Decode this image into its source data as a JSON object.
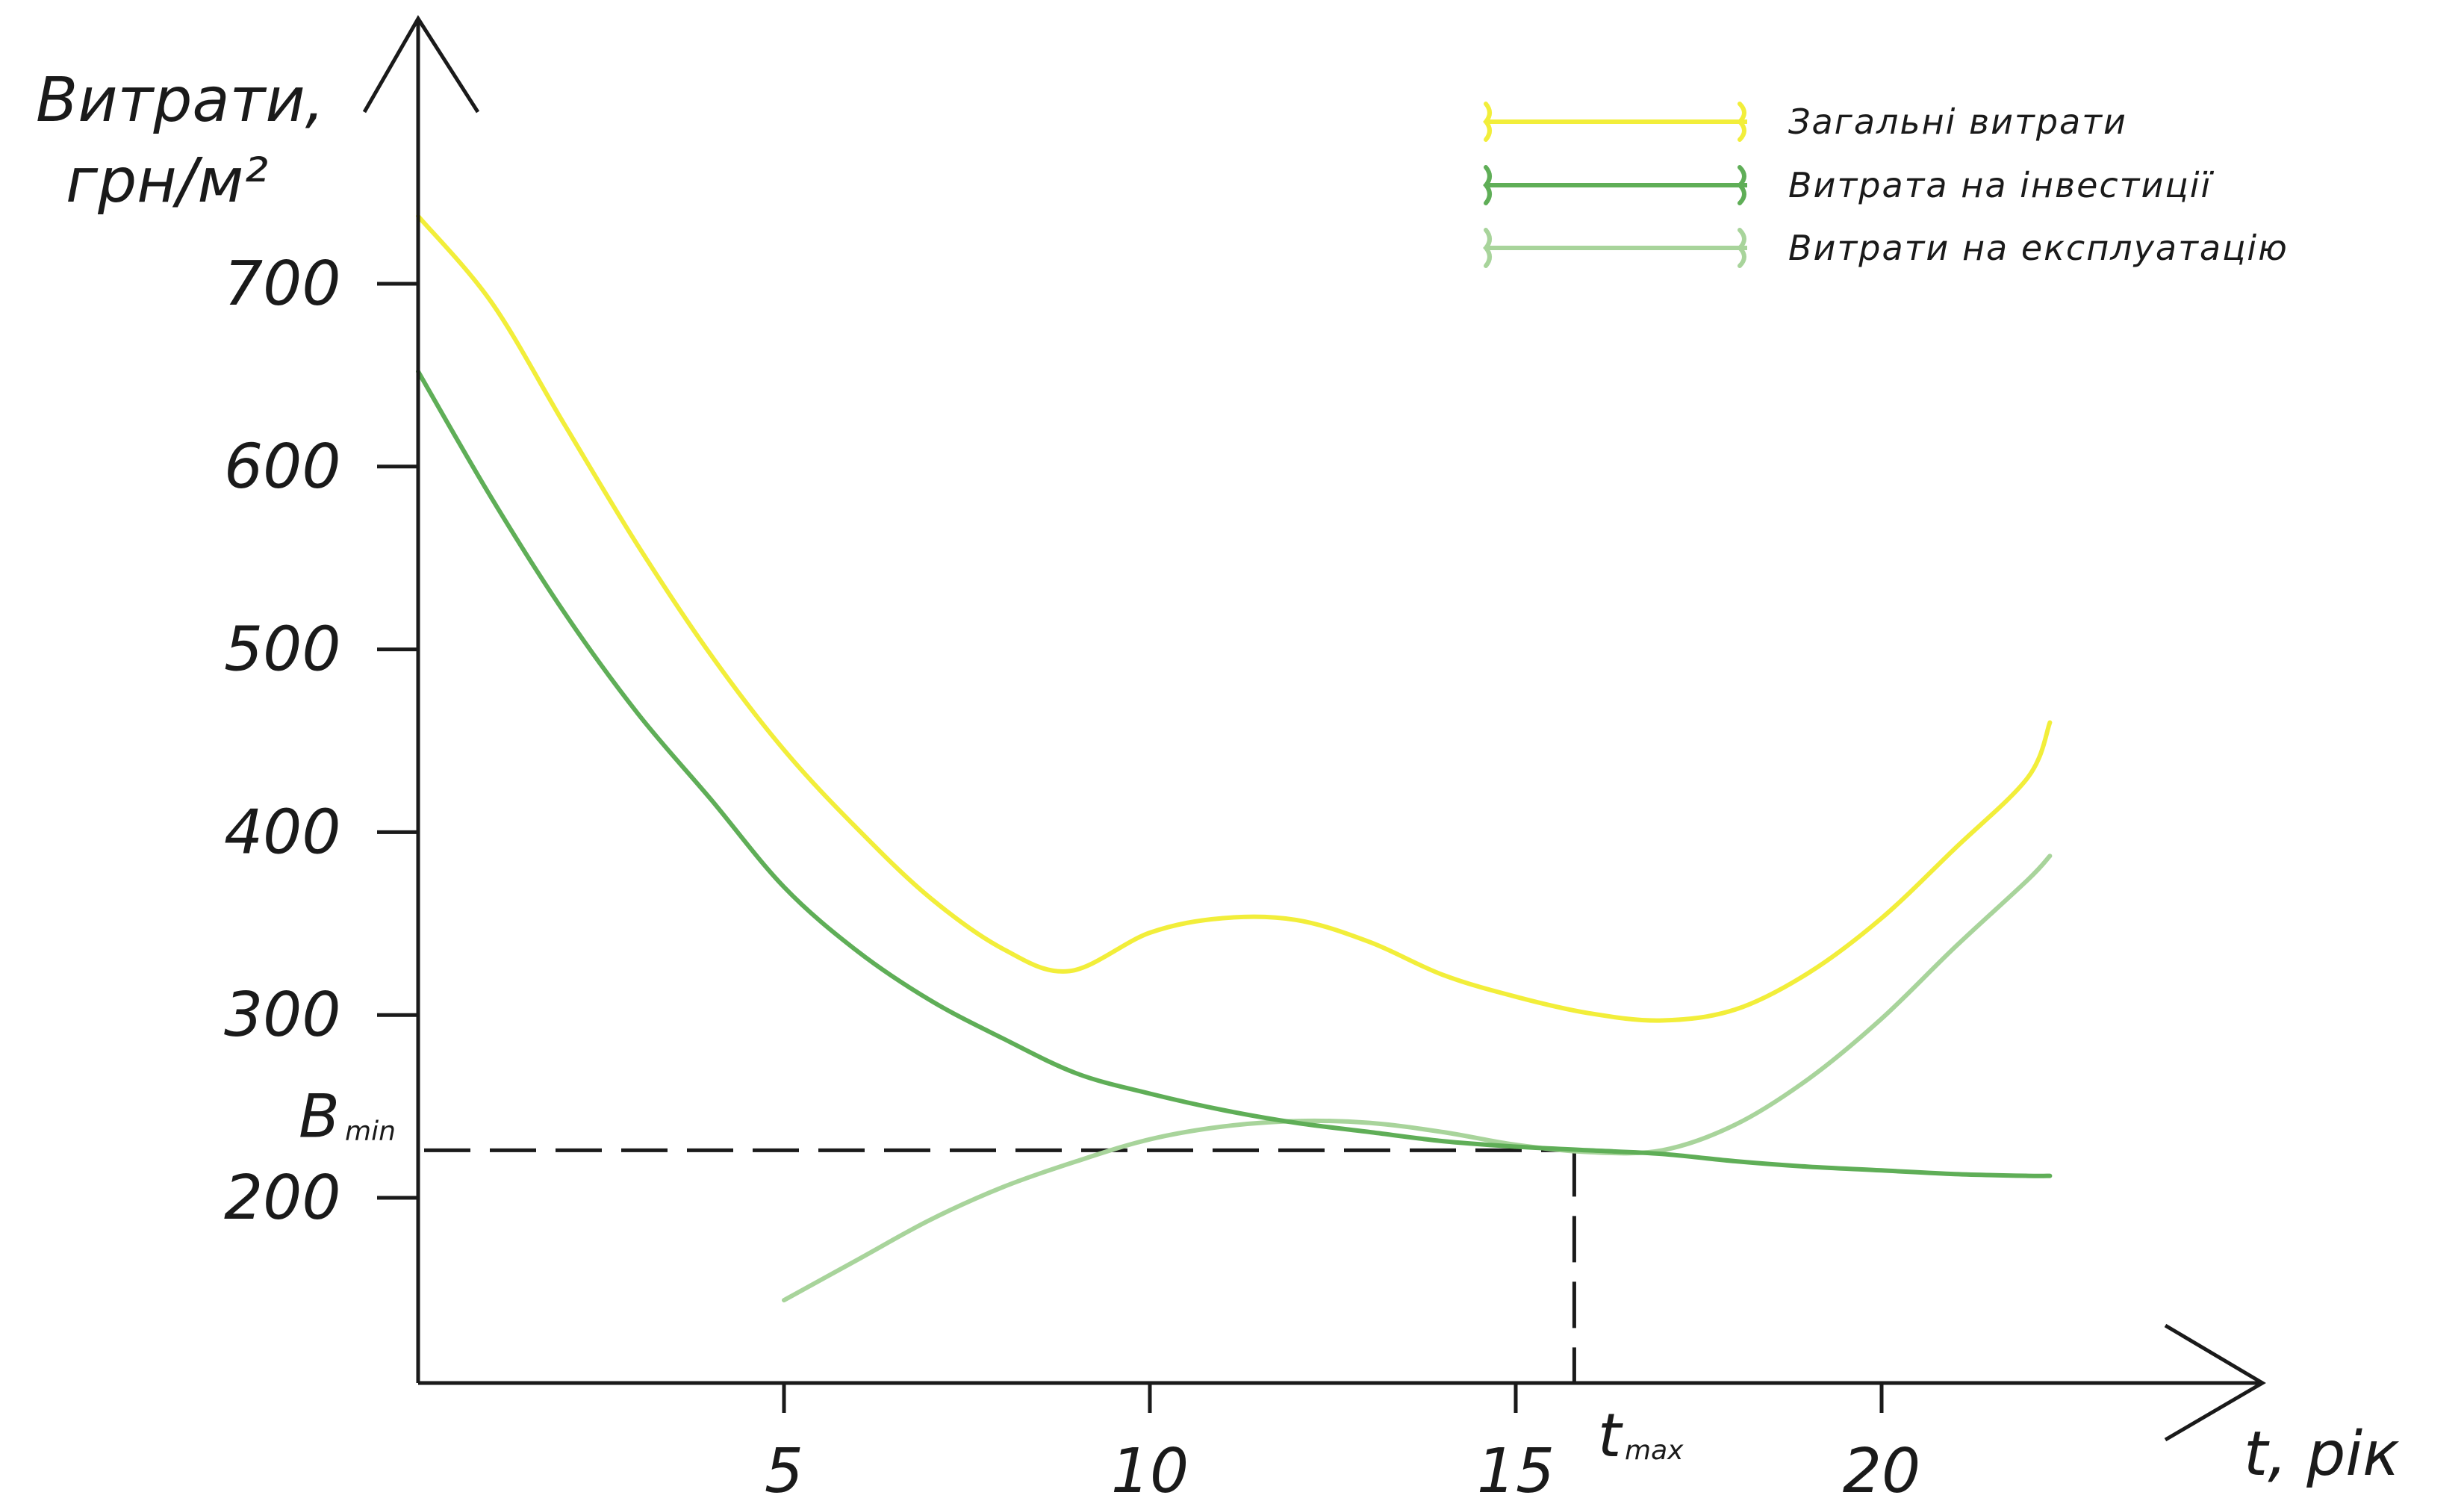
{
  "chart_data": {
    "type": "line",
    "title": "",
    "ylabel_line1": "Витрати,",
    "ylabel_line2": "грн/м²",
    "xlabel": "t, рік",
    "xlim": [
      0,
      25
    ],
    "ylim": [
      100,
      800
    ],
    "x_ticks": [
      {
        "value": 5,
        "label": "5"
      },
      {
        "value": 10,
        "label": "10"
      },
      {
        "value": 15,
        "label": "15"
      },
      {
        "value": 20,
        "label": "20"
      }
    ],
    "y_ticks": [
      {
        "value": 200,
        "label": "200"
      },
      {
        "value": 300,
        "label": "300"
      },
      {
        "value": 400,
        "label": "400"
      },
      {
        "value": 500,
        "label": "500"
      },
      {
        "value": 600,
        "label": "600"
      },
      {
        "value": 700,
        "label": "700"
      }
    ],
    "grid": false,
    "legend_position": "top-right",
    "series": [
      {
        "name": "Загальні витрати",
        "color": "#f2ee3a",
        "points": [
          [
            0,
            737
          ],
          [
            1,
            690
          ],
          [
            2,
            623
          ],
          [
            3,
            557
          ],
          [
            4,
            497
          ],
          [
            5,
            445
          ],
          [
            6,
            402
          ],
          [
            7,
            364
          ],
          [
            8,
            336
          ],
          [
            8.9,
            324
          ],
          [
            10,
            345
          ],
          [
            11,
            353
          ],
          [
            12,
            352
          ],
          [
            13,
            340
          ],
          [
            14,
            322
          ],
          [
            15,
            310
          ],
          [
            16,
            301
          ],
          [
            17,
            297
          ],
          [
            18,
            303
          ],
          [
            19,
            323
          ],
          [
            20,
            353
          ],
          [
            21,
            391
          ],
          [
            22,
            430
          ],
          [
            22.3,
            460
          ]
        ]
      },
      {
        "name": "Витрата на інвестиції",
        "color": "#5fae57",
        "points": [
          [
            0,
            652
          ],
          [
            1,
            583
          ],
          [
            2,
            520
          ],
          [
            3,
            465
          ],
          [
            4,
            418
          ],
          [
            5,
            370
          ],
          [
            6,
            335
          ],
          [
            7,
            308
          ],
          [
            8,
            287
          ],
          [
            9,
            268
          ],
          [
            10,
            257
          ],
          [
            11,
            248
          ],
          [
            12,
            241
          ],
          [
            13,
            236
          ],
          [
            14,
            231
          ],
          [
            15,
            228
          ],
          [
            16,
            226
          ],
          [
            17,
            224
          ],
          [
            18,
            220
          ],
          [
            19,
            217
          ],
          [
            20,
            215
          ],
          [
            21,
            213
          ],
          [
            22,
            212
          ],
          [
            22.3,
            212
          ]
        ]
      },
      {
        "name": "Витрати на експлуатацію",
        "color": "#a8d49b",
        "points": [
          [
            5,
            144
          ],
          [
            6,
            166
          ],
          [
            7,
            188
          ],
          [
            8,
            206
          ],
          [
            9,
            220
          ],
          [
            10,
            232
          ],
          [
            11,
            239
          ],
          [
            12,
            242
          ],
          [
            13,
            241
          ],
          [
            14,
            236
          ],
          [
            15,
            229
          ],
          [
            16,
            225
          ],
          [
            17,
            226
          ],
          [
            18,
            240
          ],
          [
            19,
            265
          ],
          [
            20,
            298
          ],
          [
            21,
            337
          ],
          [
            22,
            374
          ],
          [
            22.3,
            387
          ]
        ]
      }
    ],
    "annotations": {
      "bmin_value": 226,
      "tmax_value": 15.8,
      "bmin_main": "B",
      "bmin_sub": "min",
      "tmax_main": "t",
      "tmax_sub": "max"
    }
  }
}
